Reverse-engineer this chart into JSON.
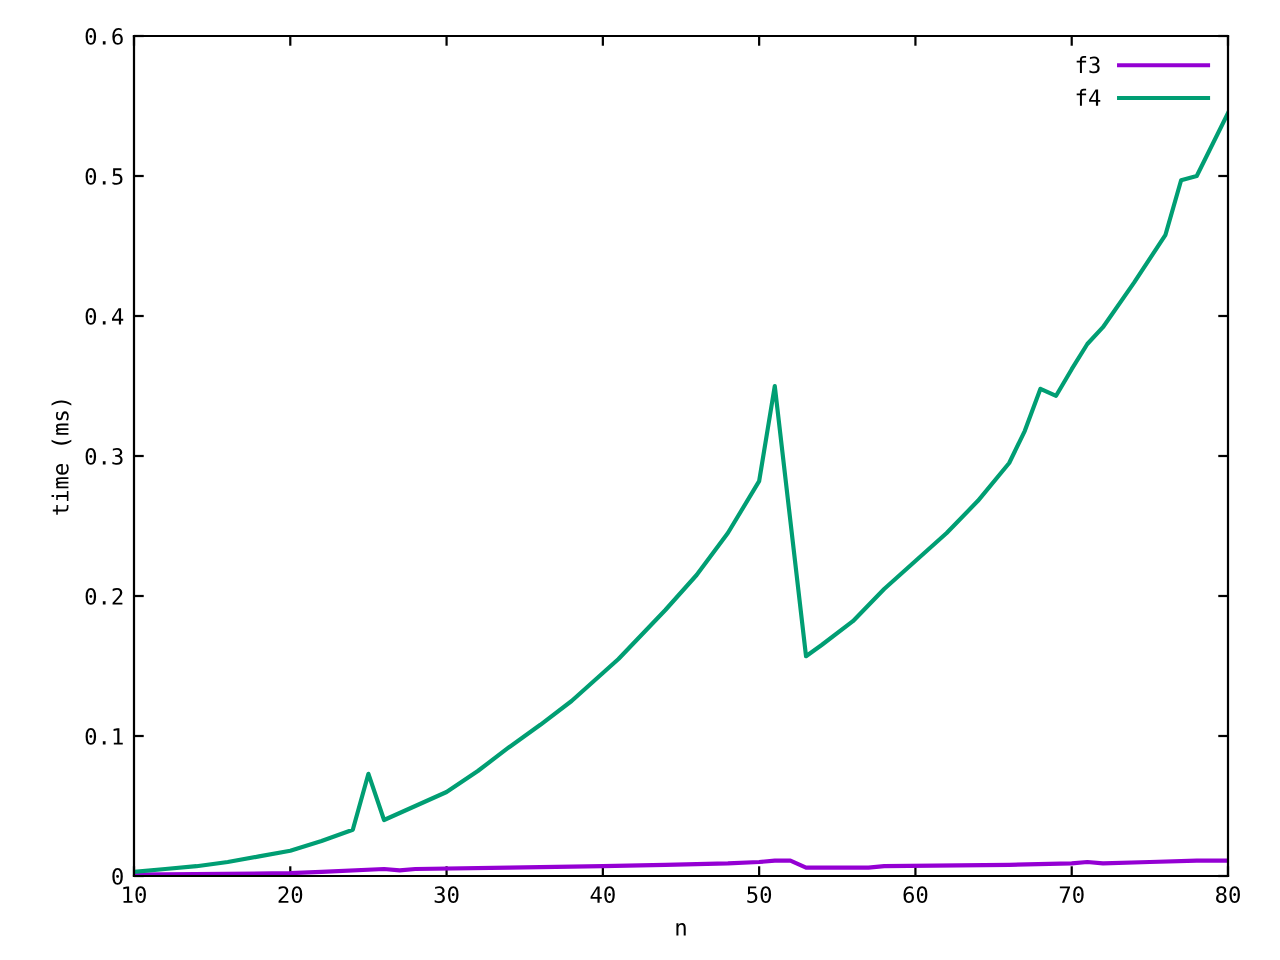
{
  "chart_data": {
    "type": "line",
    "xlabel": "n",
    "ylabel": "time (ms)",
    "xlim": [
      10,
      80
    ],
    "xticks": [
      10,
      20,
      30,
      40,
      50,
      60,
      70,
      80
    ],
    "ylim": [
      0,
      0.6
    ],
    "yticks": [
      0,
      0.1,
      0.2,
      0.3,
      0.4,
      0.5,
      0.6
    ],
    "grid": false,
    "legend": "top right",
    "marker": "none",
    "line_style": "solid",
    "series": [
      {
        "name": "f3",
        "color": "#9400d3",
        "x": [
          10,
          20,
          22,
          26,
          27,
          28,
          34,
          40,
          44,
          48,
          50,
          51,
          52,
          53,
          57,
          58,
          66,
          70,
          71,
          72,
          75,
          78,
          80
        ],
        "values": [
          0.001,
          0.002,
          0.003,
          0.005,
          0.004,
          0.005,
          0.006,
          0.007,
          0.008,
          0.009,
          0.01,
          0.011,
          0.011,
          0.006,
          0.006,
          0.007,
          0.008,
          0.009,
          0.01,
          0.009,
          0.01,
          0.011,
          0.011
        ]
      },
      {
        "name": "f4",
        "color": "#009e73",
        "x": [
          10,
          12,
          14,
          16,
          18,
          20,
          22,
          24,
          25,
          26,
          28,
          30,
          32,
          34,
          36,
          38,
          40,
          41,
          44,
          46,
          48,
          50,
          51,
          53,
          54,
          56,
          58,
          59,
          60,
          62,
          64,
          66,
          67,
          68,
          69,
          70,
          71,
          72,
          74,
          76,
          77,
          78,
          80
        ],
        "values": [
          0.003,
          0.005,
          0.007,
          0.01,
          0.014,
          0.018,
          0.025,
          0.033,
          0.073,
          0.04,
          0.05,
          0.06,
          0.075,
          0.092,
          0.108,
          0.125,
          0.145,
          0.155,
          0.19,
          0.215,
          0.245,
          0.282,
          0.35,
          0.157,
          0.165,
          0.182,
          0.205,
          0.215,
          0.225,
          0.245,
          0.268,
          0.295,
          0.318,
          0.348,
          0.343,
          0.362,
          0.38,
          0.392,
          0.424,
          0.458,
          0.497,
          0.5,
          0.545
        ]
      }
    ]
  }
}
